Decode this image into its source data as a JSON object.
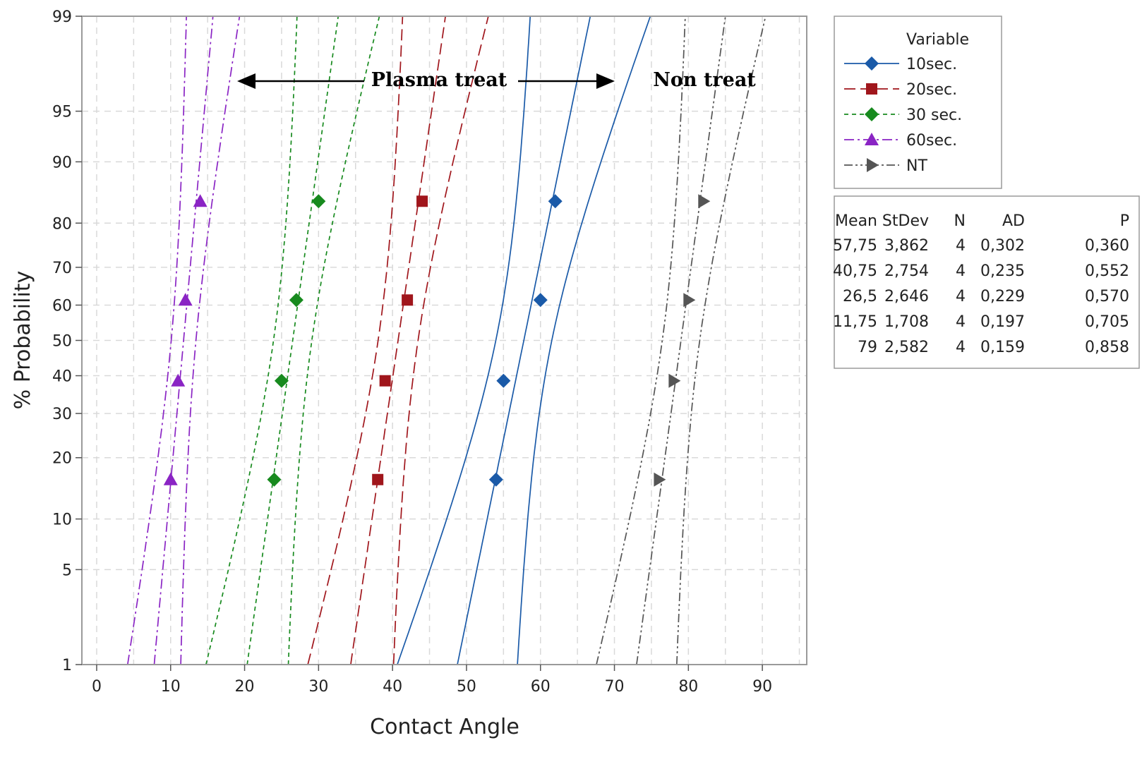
{
  "chart_data": {
    "type": "probability",
    "xlabel": "Contact Angle",
    "ylabel": "% Probability",
    "xlim": [
      -2,
      96
    ],
    "xticks": [
      0,
      10,
      20,
      30,
      40,
      50,
      60,
      70,
      80,
      90
    ],
    "yticks": [
      1,
      5,
      10,
      20,
      30,
      40,
      50,
      60,
      70,
      80,
      90,
      95,
      99
    ],
    "ylim": [
      1,
      99
    ],
    "y_scale": "normal-probability",
    "grid": true,
    "annotations": [
      {
        "text": "Plasma treat",
        "x": 46,
        "y": 97.5,
        "arrows": "both",
        "from": 19.5,
        "to": 71
      },
      {
        "text": "Non treat",
        "x": 82,
        "y": 97.5
      }
    ],
    "legend": {
      "title": "Variable",
      "placement": "right"
    },
    "series": [
      {
        "name": "10sec.",
        "color": "#1a5aa8",
        "marker": "diamond",
        "dash": "solid",
        "points": [
          [
            54,
            15.9
          ],
          [
            55,
            38.6
          ],
          [
            60,
            61.4
          ],
          [
            62,
            84.1
          ]
        ],
        "mean": 57.75,
        "stdev": 3.862,
        "n": 4,
        "ad": "0,302",
        "p": "0,360"
      },
      {
        "name": "20sec.",
        "color": "#a0161c",
        "marker": "square",
        "dash": "longdash",
        "points": [
          [
            38,
            15.9
          ],
          [
            39,
            38.6
          ],
          [
            42,
            61.4
          ],
          [
            44,
            84.1
          ]
        ],
        "mean": 40.75,
        "stdev": 2.754,
        "n": 4,
        "ad": "0,235",
        "p": "0,552"
      },
      {
        "name": "30 sec.",
        "color": "#178a1e",
        "marker": "diamond",
        "dash": "shortdash",
        "points": [
          [
            24,
            15.9
          ],
          [
            25,
            38.6
          ],
          [
            27,
            61.4
          ],
          [
            30,
            84.1
          ]
        ],
        "mean": 26.5,
        "stdev": 2.646,
        "n": 4,
        "ad": "0,229",
        "p": "0,570"
      },
      {
        "name": "60sec.",
        "color": "#8a24c4",
        "marker": "triangle",
        "dash": "dashdot",
        "points": [
          [
            10,
            15.9
          ],
          [
            11,
            38.6
          ],
          [
            12,
            61.4
          ],
          [
            14,
            84.1
          ]
        ],
        "mean": 11.75,
        "stdev": 1.708,
        "n": 4,
        "ad": "0,197",
        "p": "0,705"
      },
      {
        "name": "NT",
        "color": "#555555",
        "marker": "triangle-right",
        "dash": "dashdotdot",
        "points": [
          [
            76,
            15.9
          ],
          [
            78,
            38.6
          ],
          [
            80,
            61.4
          ],
          [
            82,
            84.1
          ]
        ],
        "mean": 79,
        "stdev": 2.582,
        "n": 4,
        "ad": "0,159",
        "p": "0,858"
      }
    ],
    "stats_table": {
      "headers": [
        "Mean",
        "StDev",
        "N",
        "AD",
        "P"
      ],
      "rows": [
        [
          "57,75",
          "3,862",
          "4",
          "0,302",
          "0,360"
        ],
        [
          "40,75",
          "2,754",
          "4",
          "0,235",
          "0,552"
        ],
        [
          "26,5",
          "2,646",
          "4",
          "0,229",
          "0,570"
        ],
        [
          "11,75",
          "1,708",
          "4",
          "0,197",
          "0,705"
        ],
        [
          "79",
          "2,582",
          "4",
          "0,159",
          "0,858"
        ]
      ]
    }
  }
}
